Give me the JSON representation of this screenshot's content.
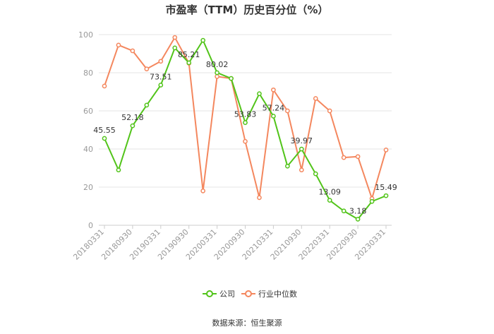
{
  "chart_data": {
    "type": "line",
    "title": "市盈率（TTM）历史百分位（%）",
    "xlabel": "",
    "ylabel": "",
    "ylim": [
      0,
      100
    ],
    "yticks": [
      0,
      20,
      40,
      60,
      80,
      100
    ],
    "grid": true,
    "legend_position": "bottom",
    "x": [
      "20180331",
      "20180630",
      "20180930",
      "20181231",
      "20190331",
      "20190630",
      "20190930",
      "20191231",
      "20200331",
      "20200630",
      "20200930",
      "20201231",
      "20210331",
      "20210630",
      "20210930",
      "20211231",
      "20220331",
      "20220630",
      "20220930",
      "20221231",
      "20230331"
    ],
    "x_tick_labels": [
      "20180331",
      "20180930",
      "20190331",
      "20190930",
      "20200331",
      "20200930",
      "20210331",
      "20210930",
      "20220331",
      "20220930",
      "20230331"
    ],
    "series": [
      {
        "name": "公司",
        "color": "#52c41a",
        "values": [
          45.55,
          29,
          52.18,
          63,
          73.51,
          93,
          85.21,
          97,
          80.02,
          77,
          53.83,
          69,
          57.24,
          31,
          39.97,
          27,
          13.09,
          7.5,
          3.18,
          12.5,
          15.49
        ],
        "data_labels": [
          {
            "index": 0,
            "text": "45.55"
          },
          {
            "index": 2,
            "text": "52.18"
          },
          {
            "index": 4,
            "text": "73.51"
          },
          {
            "index": 6,
            "text": "85.21"
          },
          {
            "index": 8,
            "text": "80.02"
          },
          {
            "index": 10,
            "text": "53.83"
          },
          {
            "index": 12,
            "text": "57.24"
          },
          {
            "index": 14,
            "text": "39.97"
          },
          {
            "index": 16,
            "text": "13.09"
          },
          {
            "index": 18,
            "text": "3.18"
          },
          {
            "index": 20,
            "text": "15.49"
          }
        ]
      },
      {
        "name": "行业中位数",
        "color": "#f4875e",
        "values": [
          73,
          94.5,
          91.5,
          82,
          86,
          98.5,
          85,
          18,
          78,
          77,
          44,
          14.5,
          71,
          60,
          29,
          66.5,
          60,
          35.5,
          36,
          14,
          39.5
        ]
      }
    ]
  },
  "source_text": "数据来源：恒生聚源"
}
